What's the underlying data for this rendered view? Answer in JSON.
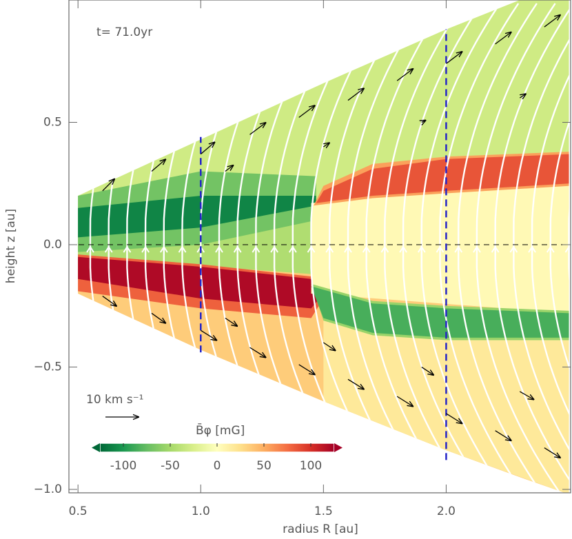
{
  "chart_data": {
    "type": "field",
    "xlabel": "radius  R [au]",
    "ylabel": "height  z [au]",
    "annotation": "t= 71.0yr",
    "xlim": [
      0.463,
      2.507
    ],
    "ylim": [
      -1.014,
      1.0
    ],
    "xticks": [
      0.5,
      {
        "value": 1,
        "label": "1.0"
      },
      1.5,
      {
        "value": 2,
        "label": "2.0"
      }
    ],
    "yticks": [
      {
        "value": -1,
        "label": "−1.0"
      },
      {
        "value": -0.5,
        "label": "−0.5"
      },
      {
        "value": 0,
        "label": "0.0"
      },
      0.5
    ],
    "colormap": [
      "#006837",
      "#1a9850",
      "#66bd63",
      "#a6d96a",
      "#d9ef8b",
      "#ffffbf",
      "#fee08b",
      "#fdae61",
      "#f46d43",
      "#d73027",
      "#a50026"
    ],
    "colorbar": {
      "label": "B̄φ [mG]",
      "clim": [
        -125,
        125
      ],
      "ticks": [
        -100,
        -50,
        0,
        50,
        100
      ]
    },
    "domain": {
      "R": [
        0.5,
        1.0,
        1.5,
        2.0,
        2.3,
        2.5
      ],
      "z_top": [
        0.2,
        0.43,
        0.66,
        0.88,
        1.0,
        1.0
      ],
      "z_bottom": [
        -0.2,
        -0.43,
        -0.64,
        -0.84,
        -0.95,
        -1.02
      ]
    },
    "regions": [
      {
        "value": -30,
        "R": [
          0.5,
          1.0,
          1.5,
          2.0,
          2.3,
          2.5,
          2.5,
          0.5
        ],
        "z": [
          0.2,
          0.43,
          0.66,
          0.88,
          1.0,
          1.0,
          0,
          0
        ]
      },
      {
        "value": 35,
        "R": [
          0.5,
          2.5,
          2.5,
          2.3,
          2.0,
          1.5,
          1.0,
          0.5
        ],
        "z": [
          0,
          0,
          -1.02,
          -0.95,
          -0.84,
          -0.64,
          -0.43,
          -0.2
        ]
      },
      {
        "value": -45,
        "R": [
          0.5,
          1.45,
          1.45,
          0.5
        ],
        "z": [
          -0.05,
          -0.12,
          0.1,
          0.0
        ]
      },
      {
        "value": -70,
        "R": [
          0.5,
          1.0,
          1.47,
          1.47,
          1.0,
          0.5
        ],
        "z": [
          -0.03,
          0.0,
          0.1,
          0.28,
          0.3,
          0.2
        ]
      },
      {
        "value": -110,
        "R": [
          0.5,
          1.0,
          1.47,
          1.47,
          1.0,
          0.5
        ],
        "z": [
          0.03,
          0.07,
          0.16,
          0.2,
          0.2,
          0.15
        ]
      },
      {
        "value": 80,
        "R": [
          0.5,
          1.0,
          1.45,
          1.5,
          1.45,
          1.0,
          0.5
        ],
        "z": [
          -0.04,
          -0.08,
          -0.13,
          -0.22,
          -0.3,
          -0.26,
          -0.19
        ]
      },
      {
        "value": 120,
        "R": [
          0.5,
          1.0,
          1.45,
          1.5,
          1.45,
          1.0,
          0.5
        ],
        "z": [
          -0.05,
          -0.09,
          -0.14,
          -0.2,
          -0.26,
          -0.22,
          -0.14
        ]
      },
      {
        "value": 5,
        "R": [
          1.45,
          2.5,
          2.5,
          1.45
        ],
        "z": [
          0.17,
          0.27,
          -0.28,
          -0.2
        ]
      },
      {
        "value": 55,
        "R": [
          1.46,
          1.7,
          2.0,
          2.5,
          2.5,
          2.0,
          1.7,
          1.5
        ],
        "z": [
          0.16,
          0.19,
          0.21,
          0.24,
          0.38,
          0.36,
          0.33,
          0.24
        ]
      },
      {
        "value": 85,
        "R": [
          1.47,
          1.7,
          2.0,
          2.5,
          2.5,
          2.0,
          1.7,
          1.5
        ],
        "z": [
          0.17,
          0.2,
          0.22,
          0.25,
          0.37,
          0.35,
          0.31,
          0.22
        ]
      },
      {
        "value": 18,
        "R": [
          1.5,
          2.5,
          2.5,
          2.0,
          1.5
        ],
        "z": [
          -0.3,
          -0.38,
          -1.02,
          -0.84,
          -0.64
        ]
      },
      {
        "value": -55,
        "R": [
          1.45,
          1.7,
          2.0,
          2.5,
          2.5,
          2.0,
          1.7,
          1.5
        ],
        "z": [
          -0.16,
          -0.23,
          -0.25,
          -0.27,
          -0.39,
          -0.39,
          -0.37,
          -0.31
        ]
      },
      {
        "value": -85,
        "R": [
          1.45,
          1.7,
          2.0,
          2.5,
          2.5,
          2.0,
          1.7,
          1.5
        ],
        "z": [
          -0.17,
          -0.24,
          -0.26,
          -0.28,
          -0.38,
          -0.38,
          -0.36,
          -0.3
        ]
      }
    ],
    "vectors": {
      "R": [
        0.6,
        0.8,
        1.0,
        1.2,
        1.4,
        1.6,
        1.8,
        2.0,
        2.2,
        2.4,
        0.6,
        0.8,
        1.0,
        1.2,
        1.4,
        1.6,
        1.8,
        2.0,
        2.2,
        2.4,
        1.1,
        1.5,
        1.9,
        2.3,
        1.1,
        1.5,
        1.9,
        2.3
      ],
      "z": [
        0.22,
        0.3,
        0.37,
        0.45,
        0.52,
        0.59,
        0.67,
        0.74,
        0.82,
        0.89,
        -0.21,
        -0.28,
        -0.35,
        -0.42,
        -0.49,
        -0.55,
        -0.62,
        -0.69,
        -0.76,
        -0.83,
        0.3,
        0.4,
        0.5,
        0.6,
        -0.3,
        -0.4,
        -0.5,
        -0.6
      ],
      "vR": [
        6,
        7,
        7,
        8,
        8,
        8,
        8,
        8,
        8,
        8,
        7,
        7,
        8,
        8,
        8,
        8,
        8,
        8,
        8,
        8,
        4,
        3,
        2,
        3,
        6,
        6,
        6,
        7
      ],
      "vz": [
        6,
        6,
        6,
        6,
        6,
        6,
        6,
        6,
        6,
        6,
        -5,
        -5,
        -5,
        -5,
        -5,
        -5,
        -5,
        -5,
        -5,
        -5,
        3,
        2,
        1,
        2,
        -4,
        -4,
        -4,
        -4
      ]
    },
    "reference_vector": {
      "value": 10,
      "label": "10 km s⁻¹"
    },
    "hline": 0,
    "vlines": [
      {
        "x": 1.0,
        "ymin": -0.44,
        "ymax": 0.44
      },
      {
        "x": 2.0,
        "ymin": -0.88,
        "ymax": 0.88
      }
    ],
    "vline_color": "#2424c8"
  }
}
